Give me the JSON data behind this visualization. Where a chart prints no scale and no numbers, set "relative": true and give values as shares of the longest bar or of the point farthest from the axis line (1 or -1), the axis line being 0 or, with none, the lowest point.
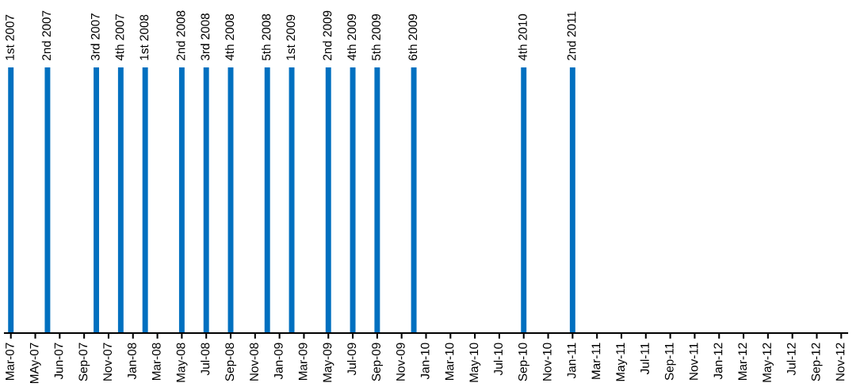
{
  "chart_data": {
    "type": "bar",
    "relative": true,
    "color": "#0070c0",
    "categories": [
      "Mar-07",
      null,
      "MAy-07",
      null,
      "Jun-07",
      null,
      "Sep-07",
      null,
      "Nov-07",
      null,
      "Jan-08",
      null,
      "Mar-08",
      null,
      "May-08",
      null,
      "Jul-08",
      null,
      "Sep-08",
      null,
      "Nov-08",
      null,
      "Jan-09",
      null,
      "Mar-09",
      null,
      "May-09",
      null,
      "Jul-09",
      null,
      "Sep-09",
      null,
      "Nov-09",
      null,
      "Jan-10",
      null,
      "Mar-10",
      null,
      "May-10",
      null,
      "Jul-10",
      null,
      "Sep-10",
      null,
      "Nov-10",
      null,
      "Jan-11",
      null,
      "Mar-11",
      null,
      "May-11",
      null,
      "Jul-11",
      null,
      "Sep-11",
      null,
      "Nov-11",
      null,
      "Jan-12",
      null,
      "Mar-12",
      null,
      "May-12",
      null,
      "Jul-12",
      null,
      "Sep-12",
      null,
      "Nov-12"
    ],
    "values": [
      1,
      null,
      null,
      1,
      null,
      null,
      null,
      1,
      null,
      1,
      null,
      1,
      null,
      null,
      1,
      null,
      1,
      null,
      1,
      null,
      null,
      1,
      null,
      1,
      null,
      null,
      1,
      null,
      1,
      null,
      1,
      null,
      null,
      1,
      null,
      null,
      null,
      null,
      null,
      null,
      null,
      null,
      1,
      null,
      null,
      null,
      1,
      null,
      null,
      null,
      null,
      null,
      null,
      null,
      null,
      null,
      null,
      null,
      null,
      null,
      null,
      null,
      null,
      null,
      null,
      null,
      null,
      null,
      null
    ],
    "annotations": [
      "1st 2007",
      "2nd 2007",
      "3rd 2007",
      "4th 2007",
      "1st 2008",
      "2nd 2008",
      "3rd 2008",
      "4th 2008",
      "5th 2008",
      "1st 2009",
      "2nd 2009",
      "4th 2009",
      "5th 2009",
      "6th 2009",
      "4th 2010",
      "2nd 2011"
    ]
  }
}
